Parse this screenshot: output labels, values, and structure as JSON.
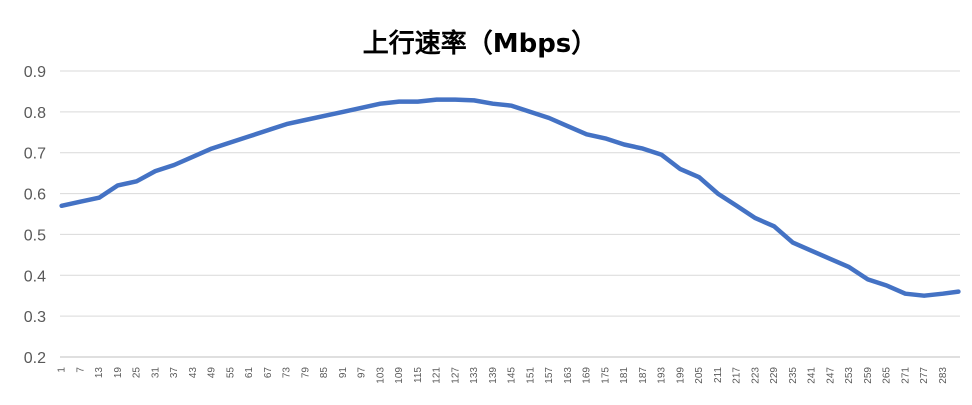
{
  "chart_data": {
    "type": "line",
    "title": "上行速率（Mbps）",
    "xlabel": "",
    "ylabel": "",
    "ylim": [
      0.2,
      0.9
    ],
    "yticks": [
      "0.2",
      "0.3",
      "0.4",
      "0.5",
      "0.6",
      "0.7",
      "0.8",
      "0.9"
    ],
    "x_range": [
      1,
      288
    ],
    "x_tick_labels": [
      "1",
      "7",
      "13",
      "19",
      "25",
      "31",
      "37",
      "43",
      "49",
      "55",
      "61",
      "67",
      "73",
      "79",
      "85",
      "91",
      "97",
      "103",
      "109",
      "115",
      "121",
      "127",
      "133",
      "139",
      "145",
      "151",
      "157",
      "163",
      "169",
      "175",
      "181",
      "187",
      "193",
      "199",
      "205",
      "211",
      "217",
      "223",
      "229",
      "235",
      "241",
      "247",
      "253",
      "259",
      "265",
      "271",
      "277",
      "283"
    ],
    "grid": true,
    "legend": "none",
    "colors": {
      "line": "#4472c4",
      "grid": "#d9d9d9",
      "axis": "#bfbfbf",
      "tick_text": "#595959",
      "title": "#000000"
    },
    "series": [
      {
        "name": "",
        "x": [
          1,
          7,
          13,
          19,
          25,
          31,
          37,
          43,
          49,
          55,
          61,
          67,
          73,
          79,
          85,
          91,
          97,
          103,
          109,
          115,
          121,
          127,
          133,
          139,
          145,
          151,
          157,
          163,
          169,
          175,
          181,
          187,
          193,
          199,
          205,
          211,
          217,
          223,
          229,
          235,
          241,
          247,
          253,
          259,
          265,
          271,
          277,
          283,
          288
        ],
        "values": [
          0.57,
          0.58,
          0.59,
          0.62,
          0.63,
          0.655,
          0.67,
          0.69,
          0.71,
          0.725,
          0.74,
          0.755,
          0.77,
          0.78,
          0.79,
          0.8,
          0.81,
          0.82,
          0.825,
          0.825,
          0.83,
          0.83,
          0.828,
          0.82,
          0.815,
          0.8,
          0.785,
          0.765,
          0.745,
          0.735,
          0.72,
          0.71,
          0.695,
          0.66,
          0.64,
          0.6,
          0.57,
          0.54,
          0.52,
          0.48,
          0.46,
          0.44,
          0.42,
          0.39,
          0.375,
          0.355,
          0.35,
          0.355,
          0.36
        ]
      }
    ]
  }
}
